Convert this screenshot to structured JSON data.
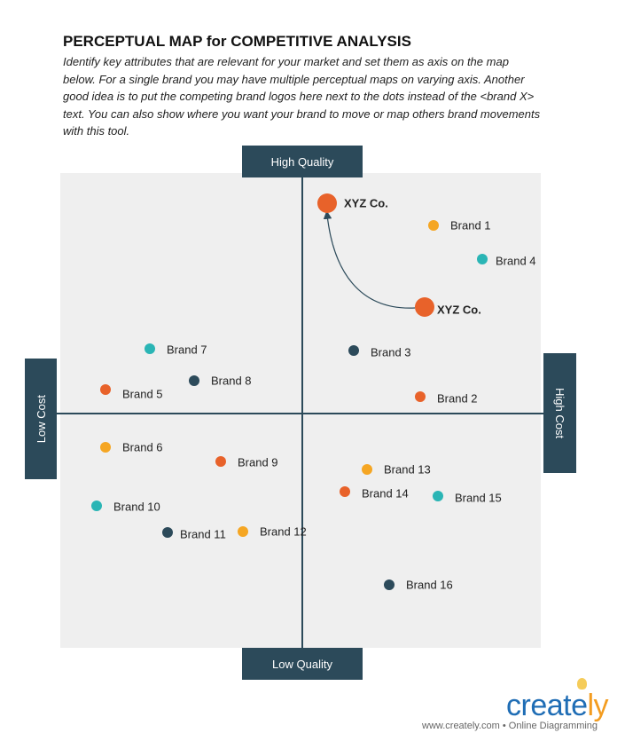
{
  "header": {
    "title": "PERCEPTUAL MAP for COMPETITIVE ANALYSIS",
    "description": "Identify key attributes that are relevant for your market and set them as axis on the map below. For a single brand you may have multiple perceptual maps on varying axis. Another good idea is to put the competing brand logos here next to the dots instead of the <brand X> text. You can also show where you want your brand to move or map others brand movements with this tool."
  },
  "axes": {
    "top": "High Quality",
    "bottom": "Low Quality",
    "left": "Low Cost",
    "right": "High Cost"
  },
  "colors": {
    "orange": "#e8622a",
    "amber": "#f5a623",
    "teal": "#2ab5b5",
    "dark": "#2c4a5a",
    "panel": "#efefef"
  },
  "points": [
    {
      "label": "XYZ Co.",
      "color": "orange",
      "emphasis": true
    },
    {
      "label": "Brand 1",
      "color": "amber"
    },
    {
      "label": "Brand 4",
      "color": "teal"
    },
    {
      "label": "XYZ Co.",
      "color": "orange",
      "emphasis": true
    },
    {
      "label": "Brand 7",
      "color": "teal"
    },
    {
      "label": "Brand 3",
      "color": "dark"
    },
    {
      "label": "Brand 8",
      "color": "dark"
    },
    {
      "label": "Brand 5",
      "color": "orange"
    },
    {
      "label": "Brand 2",
      "color": "orange"
    },
    {
      "label": "Brand 6",
      "color": "amber"
    },
    {
      "label": "Brand 9",
      "color": "orange"
    },
    {
      "label": "Brand 13",
      "color": "amber"
    },
    {
      "label": "Brand 14",
      "color": "orange"
    },
    {
      "label": "Brand 15",
      "color": "teal"
    },
    {
      "label": "Brand 10",
      "color": "teal"
    },
    {
      "label": "Brand 11",
      "color": "dark"
    },
    {
      "label": "Brand 12",
      "color": "amber"
    },
    {
      "label": "Brand 16",
      "color": "dark"
    }
  ],
  "movement": {
    "from": "XYZ Co.",
    "to": "XYZ Co."
  },
  "footer": {
    "logo": "creately",
    "url_text": "www.creately.com • Online Diagramming"
  }
}
